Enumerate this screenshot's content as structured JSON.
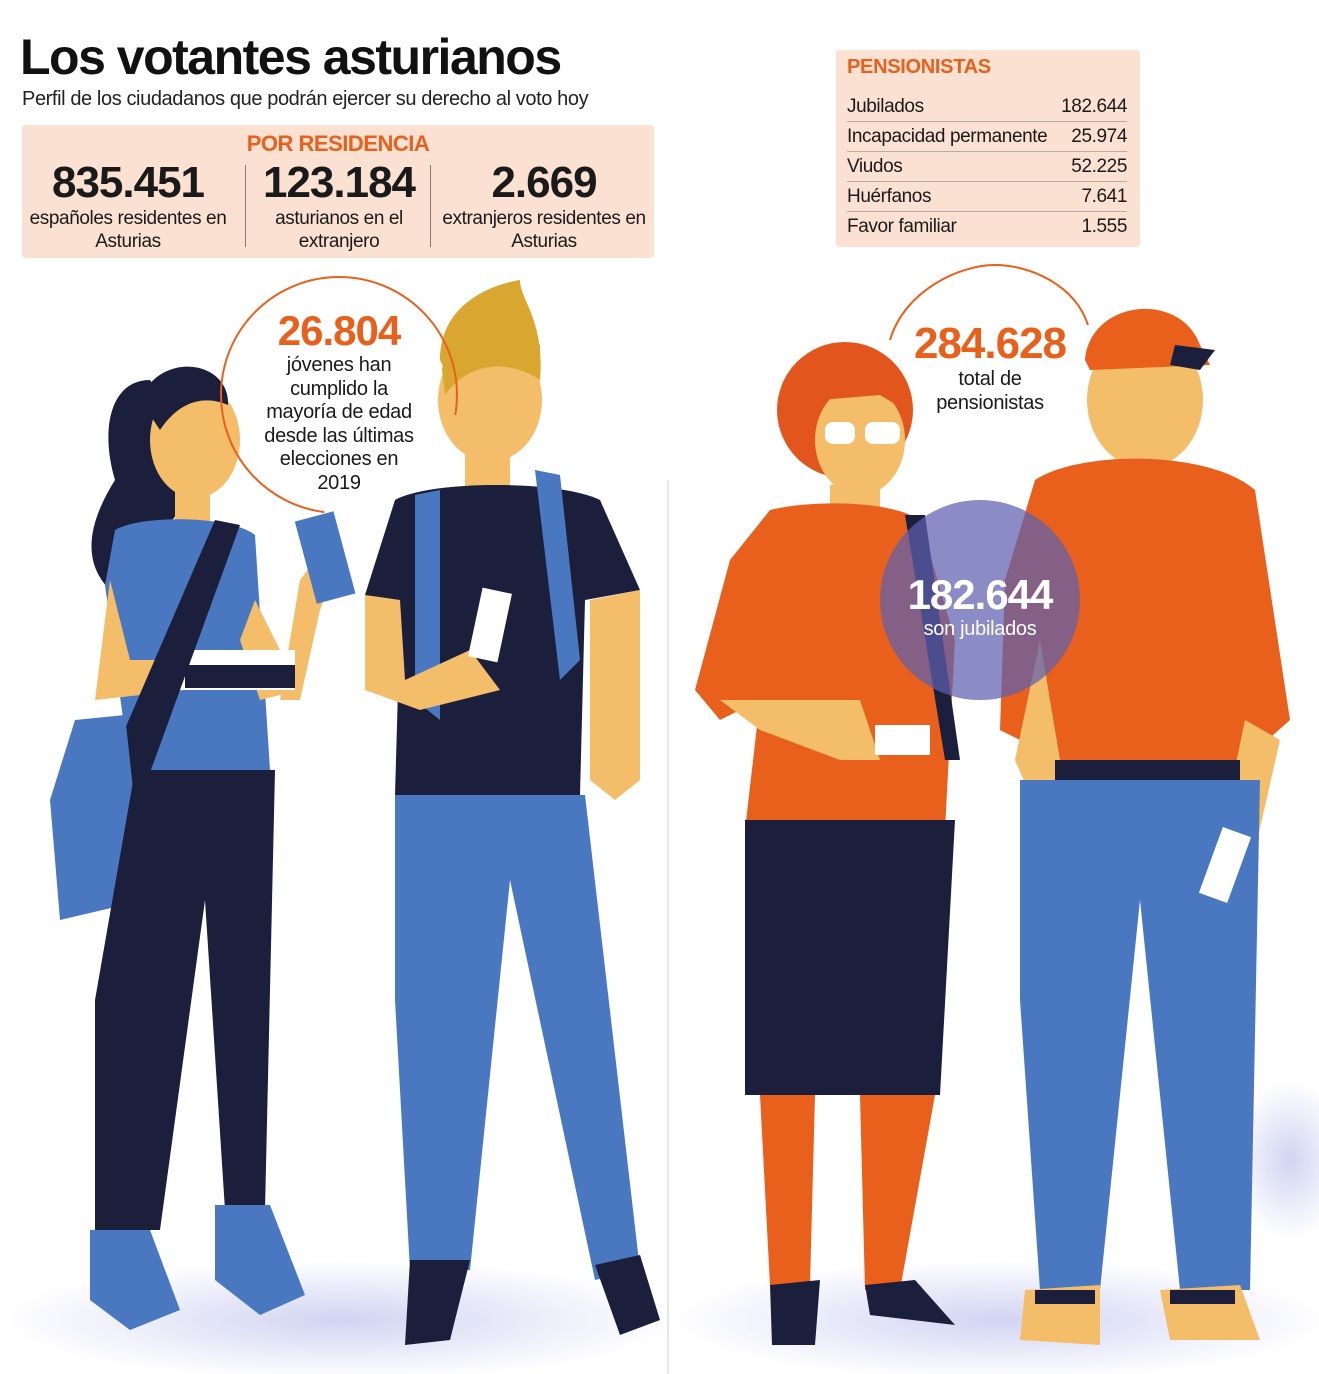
{
  "header": {
    "title": "Los votantes asturianos",
    "subtitle": "Perfil de los ciudadanos que podrán ejercer su derecho al voto hoy"
  },
  "residence": {
    "title": "POR RESIDENCIA",
    "items": [
      {
        "value": "835.451",
        "label": "españoles residentes en Asturias"
      },
      {
        "value": "123.184",
        "label": "asturianos en el extranjero"
      },
      {
        "value": "2.669",
        "label": "extranjeros residentes en Asturias"
      }
    ]
  },
  "pensioners": {
    "title": "PENSIONISTAS",
    "rows": [
      [
        "Jubilados",
        "182.644"
      ],
      [
        "Incapacidad permanente",
        "25.974"
      ],
      [
        "Viudos",
        "52.225"
      ],
      [
        "Huérfanos",
        "7.641"
      ],
      [
        "Favor familiar",
        "1.555"
      ]
    ]
  },
  "youth": {
    "value": "26.804",
    "label": "jóvenes han cumplido la mayoría de edad desde las últimas elecciones en 2019"
  },
  "total": {
    "value": "284.628",
    "label": "total de pensionistas"
  },
  "retired": {
    "value": "182.644",
    "label": "son jubilados"
  }
}
